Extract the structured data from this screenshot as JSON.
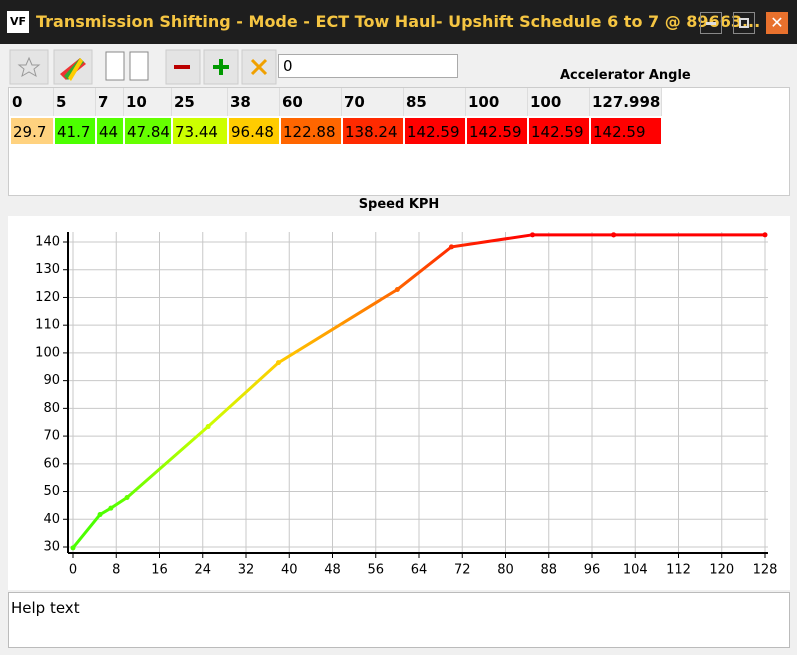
{
  "window": {
    "title": "Transmission Shifting - Mode - ECT Tow Haul- Upshift Schedule 6 to 7 @ 89663...",
    "logo": "VF"
  },
  "toolbar": {
    "input_value": "0",
    "axis_label": "Accelerator Angle"
  },
  "table": {
    "header": [
      0,
      5,
      7,
      10,
      25,
      38,
      60,
      70,
      85,
      100,
      100,
      127.998
    ],
    "values": [
      29.7,
      41.7,
      44,
      47.84,
      73.44,
      96.48,
      122.88,
      138.24,
      142.59,
      142.59,
      142.59,
      142.59
    ],
    "cell_colors": [
      "#ffd27f",
      "#4cff00",
      "#55ff00",
      "#66ff00",
      "#ccff00",
      "#ffcc00",
      "#ff6600",
      "#ff2a00",
      "#ff0000",
      "#ff0000",
      "#ff0000",
      "#ff0000"
    ]
  },
  "chart": {
    "type": "line",
    "title": "Speed KPH",
    "xlim": [
      0,
      128
    ],
    "ylim": [
      30,
      140
    ],
    "xticks": [
      0,
      8,
      16,
      24,
      32,
      40,
      48,
      56,
      64,
      72,
      80,
      88,
      96,
      104,
      112,
      120,
      128
    ],
    "yticks": [
      30,
      40,
      50,
      60,
      70,
      80,
      90,
      100,
      110,
      120,
      130,
      140
    ],
    "grid": true
  },
  "help_text": "Help text"
}
